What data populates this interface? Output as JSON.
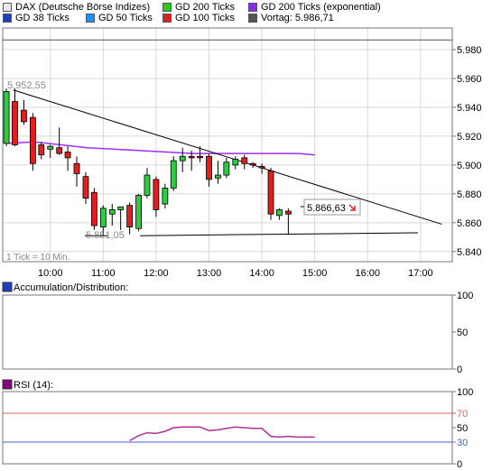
{
  "legend": {
    "row1": [
      {
        "label": "DAX (Deutsche Börse Indizes)",
        "color": "#e8e8e8",
        "icon": "dax-swatch-icon"
      },
      {
        "label": "GD 200 Ticks",
        "color": "#22cc22",
        "icon": "gd200-swatch-icon"
      },
      {
        "label": "GD 200 Ticks (exponential)",
        "color": "#8a2be2",
        "icon": "gd200exp-swatch-icon"
      }
    ],
    "row2": [
      {
        "label": "GD 38 Ticks",
        "color": "#1f3fbf",
        "icon": "gd38-swatch-icon"
      },
      {
        "label": "GD 50 Ticks",
        "color": "#1e90ff",
        "icon": "gd50-swatch-icon"
      },
      {
        "label": "GD 100 Ticks",
        "color": "#e02020",
        "icon": "gd100-swatch-icon"
      },
      {
        "label": "Vortag: 5.986,71",
        "color": "#555555",
        "icon": "vortag-swatch-icon"
      }
    ]
  },
  "chart_data": [
    {
      "type": "candlestick",
      "yticks": [
        "5.840",
        "5.860",
        "5.880",
        "5.900",
        "5.920",
        "5.940",
        "5.960",
        "5.980"
      ],
      "ylim": [
        5833,
        5995
      ],
      "xticks": [
        "10:00",
        "11:00",
        "12:00",
        "13:00",
        "14:00",
        "15:00",
        "16:00",
        "17:00"
      ],
      "xlim": [
        9.1,
        17.6
      ],
      "note": "1 Tick = 10 Min.",
      "high_label": "5.952,55",
      "low_label": "5.851,05",
      "last_label": "5.866,63",
      "previous_close": 5986.71,
      "candles": [
        {
          "t": 9.17,
          "o": 5915,
          "h": 5953,
          "l": 5913,
          "c": 5951
        },
        {
          "t": 9.33,
          "o": 5944,
          "h": 5953,
          "l": 5913,
          "c": 5914
        },
        {
          "t": 9.5,
          "o": 5938,
          "h": 5945,
          "l": 5928,
          "c": 5930
        },
        {
          "t": 9.67,
          "o": 5933,
          "h": 5936,
          "l": 5896,
          "c": 5901
        },
        {
          "t": 9.83,
          "o": 5914,
          "h": 5916,
          "l": 5904,
          "c": 5907
        },
        {
          "t": 10.0,
          "o": 5911,
          "h": 5914,
          "l": 5905,
          "c": 5913
        },
        {
          "t": 10.17,
          "o": 5912,
          "h": 5926,
          "l": 5907,
          "c": 5908
        },
        {
          "t": 10.33,
          "o": 5909,
          "h": 5913,
          "l": 5896,
          "c": 5905
        },
        {
          "t": 10.5,
          "o": 5901,
          "h": 5906,
          "l": 5885,
          "c": 5894
        },
        {
          "t": 10.67,
          "o": 5892,
          "h": 5895,
          "l": 5873,
          "c": 5877
        },
        {
          "t": 10.83,
          "o": 5881,
          "h": 5884,
          "l": 5855,
          "c": 5858
        },
        {
          "t": 11.0,
          "o": 5857,
          "h": 5872,
          "l": 5851,
          "c": 5870
        },
        {
          "t": 11.17,
          "o": 5866,
          "h": 5873,
          "l": 5858,
          "c": 5869
        },
        {
          "t": 11.33,
          "o": 5869,
          "h": 5871,
          "l": 5855,
          "c": 5871
        },
        {
          "t": 11.5,
          "o": 5872,
          "h": 5874,
          "l": 5852,
          "c": 5857
        },
        {
          "t": 11.67,
          "o": 5856,
          "h": 5880,
          "l": 5854,
          "c": 5879
        },
        {
          "t": 11.83,
          "o": 5879,
          "h": 5898,
          "l": 5877,
          "c": 5893
        },
        {
          "t": 12.0,
          "o": 5890,
          "h": 5892,
          "l": 5864,
          "c": 5869
        },
        {
          "t": 12.17,
          "o": 5873,
          "h": 5887,
          "l": 5870,
          "c": 5884
        },
        {
          "t": 12.33,
          "o": 5884,
          "h": 5906,
          "l": 5882,
          "c": 5903
        },
        {
          "t": 12.5,
          "o": 5903,
          "h": 5912,
          "l": 5895,
          "c": 5906
        },
        {
          "t": 12.67,
          "o": 5906,
          "h": 5910,
          "l": 5896,
          "c": 5905
        },
        {
          "t": 12.83,
          "o": 5906,
          "h": 5913,
          "l": 5902,
          "c": 5905
        },
        {
          "t": 13.0,
          "o": 5906,
          "h": 5908,
          "l": 5885,
          "c": 5890
        },
        {
          "t": 13.17,
          "o": 5891,
          "h": 5903,
          "l": 5887,
          "c": 5893
        },
        {
          "t": 13.33,
          "o": 5893,
          "h": 5905,
          "l": 5891,
          "c": 5902
        },
        {
          "t": 13.5,
          "o": 5900,
          "h": 5906,
          "l": 5897,
          "c": 5904
        },
        {
          "t": 13.67,
          "o": 5905,
          "h": 5907,
          "l": 5897,
          "c": 5901
        },
        {
          "t": 13.83,
          "o": 5901,
          "h": 5902,
          "l": 5898,
          "c": 5900
        },
        {
          "t": 14.0,
          "o": 5899,
          "h": 5901,
          "l": 5894,
          "c": 5898
        },
        {
          "t": 14.17,
          "o": 5896,
          "h": 5898,
          "l": 5862,
          "c": 5866
        },
        {
          "t": 14.33,
          "o": 5865,
          "h": 5870,
          "l": 5862,
          "c": 5869
        },
        {
          "t": 14.5,
          "o": 5868,
          "h": 5870,
          "l": 5852,
          "c": 5866
        }
      ],
      "ema_line": [
        [
          9.2,
          5915
        ],
        [
          9.7,
          5916
        ],
        [
          10.2,
          5914
        ],
        [
          10.7,
          5912
        ],
        [
          11.2,
          5911
        ],
        [
          11.7,
          5910
        ],
        [
          12.2,
          5909
        ],
        [
          12.7,
          5908
        ],
        [
          13.2,
          5908
        ],
        [
          13.7,
          5908
        ],
        [
          14.2,
          5908
        ],
        [
          14.7,
          5908
        ],
        [
          15.0,
          5907
        ]
      ],
      "trendline": [
        [
          9.3,
          5952
        ],
        [
          17.4,
          5859
        ]
      ],
      "support_line": [
        [
          11.7,
          5851
        ],
        [
          16.9,
          5853
        ]
      ],
      "low_marker": [
        [
          10.65,
          5851
        ],
        [
          11.1,
          5851
        ]
      ]
    },
    {
      "type": "line",
      "title": "Accumulation/Distribution:",
      "yticks": [
        "0",
        "50",
        "100"
      ],
      "ylim": [
        0,
        100
      ],
      "series": []
    },
    {
      "type": "line",
      "title": "RSI (14):",
      "yticks": [
        "0",
        "30",
        "50",
        "70",
        "100"
      ],
      "ylim": [
        0,
        100
      ],
      "reference_levels": [
        30,
        70
      ],
      "series": [
        {
          "x": [
            11.5,
            11.67,
            11.83,
            12.0,
            12.17,
            12.33,
            12.5,
            12.67,
            12.83,
            13.0,
            13.17,
            13.33,
            13.5,
            13.67,
            13.83,
            14.0,
            14.17,
            14.33,
            14.5,
            14.67,
            15.0
          ],
          "values": [
            32,
            39,
            43,
            42,
            45,
            50,
            51,
            51,
            51,
            46,
            47,
            49,
            51,
            50,
            49,
            49,
            38,
            37,
            38,
            37,
            37
          ]
        }
      ]
    }
  ],
  "colors": {
    "up": "#2ecc40",
    "down": "#e02020",
    "ema": "#9b30ff",
    "rsi": "#b03090",
    "ref_red": "#e06060",
    "ref_blue": "#4060c0",
    "grid": "#d8d8d8",
    "panel_border": "#777777",
    "annot": "#888888"
  }
}
